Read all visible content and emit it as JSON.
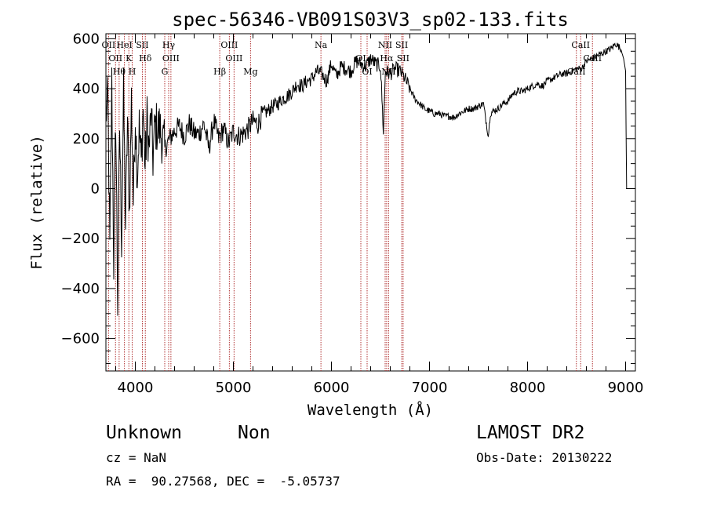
{
  "chart_data": {
    "type": "line",
    "title": "spec-56346-VB091S03V3_sp02-133.fits",
    "xlabel": "Wavelength (Å)",
    "ylabel": "Flux (relative)",
    "xlim": [
      3700,
      9100
    ],
    "ylim": [
      -730,
      620
    ],
    "x_ticks": [
      4000,
      5000,
      6000,
      7000,
      8000,
      9000
    ],
    "y_ticks": [
      -600,
      -400,
      -200,
      0,
      200,
      400,
      600
    ],
    "grid": false,
    "line_color": "#000000",
    "marker_color": "#b03030",
    "spectrum": {
      "x": [
        3700,
        3720,
        3740,
        3760,
        3780,
        3800,
        3820,
        3840,
        3860,
        3880,
        3900,
        3920,
        3940,
        3960,
        3980,
        4000,
        4020,
        4040,
        4060,
        4080,
        4100,
        4120,
        4140,
        4160,
        4180,
        4200,
        4250,
        4300,
        4350,
        4400,
        4450,
        4500,
        4550,
        4600,
        4650,
        4700,
        4750,
        4800,
        4850,
        4900,
        4950,
        5000,
        5050,
        5100,
        5150,
        5200,
        5250,
        5300,
        5350,
        5400,
        5450,
        5500,
        5550,
        5600,
        5650,
        5700,
        5750,
        5800,
        5850,
        5900,
        5950,
        6000,
        6050,
        6100,
        6150,
        6200,
        6250,
        6300,
        6350,
        6400,
        6450,
        6500,
        6530,
        6550,
        6600,
        6650,
        6700,
        6750,
        6800,
        6850,
        6900,
        6950,
        7000,
        7050,
        7100,
        7150,
        7200,
        7250,
        7300,
        7350,
        7400,
        7450,
        7500,
        7550,
        7600,
        7620,
        7650,
        7700,
        7750,
        7800,
        7850,
        7900,
        7950,
        8000,
        8050,
        8100,
        8150,
        8200,
        8250,
        8300,
        8350,
        8400,
        8450,
        8500,
        8550,
        8600,
        8650,
        8700,
        8750,
        8800,
        8850,
        8900,
        8950,
        8980,
        9000,
        9010,
        9015
      ],
      "y": [
        300,
        350,
        -250,
        420,
        -300,
        300,
        -460,
        250,
        -200,
        380,
        -150,
        280,
        -100,
        360,
        -50,
        300,
        50,
        250,
        100,
        330,
        80,
        280,
        150,
        300,
        120,
        250,
        240,
        160,
        200,
        230,
        250,
        210,
        260,
        220,
        220,
        260,
        160,
        270,
        200,
        240,
        180,
        230,
        210,
        220,
        240,
        270,
        260,
        300,
        310,
        330,
        340,
        360,
        370,
        390,
        420,
        410,
        430,
        440,
        470,
        460,
        430,
        500,
        450,
        490,
        480,
        470,
        510,
        500,
        490,
        520,
        500,
        490,
        230,
        470,
        460,
        480,
        470,
        440,
        400,
        360,
        340,
        320,
        310,
        300,
        300,
        290,
        290,
        285,
        300,
        310,
        320,
        320,
        330,
        340,
        210,
        300,
        310,
        320,
        340,
        350,
        380,
        390,
        390,
        400,
        410,
        420,
        410,
        430,
        440,
        450,
        460,
        460,
        470,
        480,
        480,
        510,
        520,
        530,
        540,
        550,
        560,
        580,
        560,
        520,
        470,
        0,
        0
      ]
    },
    "line_markers": [
      {
        "x": 3727,
        "label": "OII"
      },
      {
        "x": 3798,
        "label": "OII"
      },
      {
        "x": 3835,
        "label": "Hθ"
      },
      {
        "x": 3889,
        "label": "HeI"
      },
      {
        "x": 3934,
        "label": "K"
      },
      {
        "x": 3968,
        "label": "H"
      },
      {
        "x": 4072,
        "label": "SII"
      },
      {
        "x": 4102,
        "label": "Hδ"
      },
      {
        "x": 4300,
        "label": "G"
      },
      {
        "x": 4340,
        "label": "Hγ"
      },
      {
        "x": 4363,
        "label": "OIII"
      },
      {
        "x": 4861,
        "label": "Hβ"
      },
      {
        "x": 4959,
        "label": "OIII"
      },
      {
        "x": 5007,
        "label": "OIII"
      },
      {
        "x": 5175,
        "label": "Mg"
      },
      {
        "x": 5893,
        "label": "Na"
      },
      {
        "x": 6300,
        "label": "OI"
      },
      {
        "x": 6364,
        "label": "OI"
      },
      {
        "x": 6548,
        "label": "NII"
      },
      {
        "x": 6563,
        "label": "Hα"
      },
      {
        "x": 6583,
        "label": "NII"
      },
      {
        "x": 6717,
        "label": "SII"
      },
      {
        "x": 6731,
        "label": "SII"
      },
      {
        "x": 8498,
        "label": "CaII"
      },
      {
        "x": 8542,
        "label": "CaII"
      },
      {
        "x": 8662,
        "label": "CaII"
      }
    ]
  },
  "info": {
    "class": "Unknown",
    "subclass": "Non",
    "survey": "LAMOST DR2",
    "redshift": "cz = NaN",
    "obs_date": "Obs-Date: 20130222",
    "coords": "RA =  90.27568, DEC =  -5.05737"
  }
}
